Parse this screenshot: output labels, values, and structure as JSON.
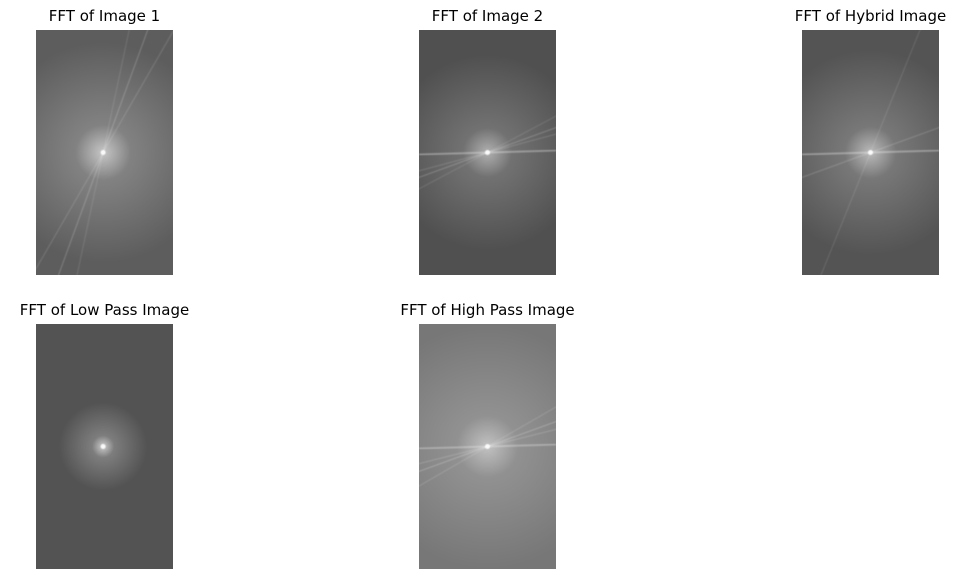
{
  "panels": [
    {
      "title": "FFT of Image 1",
      "background": "#5d5d5d",
      "center": [
        0.49,
        0.5
      ],
      "glow": 0.65,
      "glow_radius": 0.45,
      "cross": 0.55,
      "hline_tilt": 0,
      "streaks": [
        {
          "angle": 70,
          "strength": 0.35
        },
        {
          "angle": 60,
          "strength": 0.25
        },
        {
          "angle": 78,
          "strength": 0.2
        }
      ]
    },
    {
      "title": "FFT of Image 2",
      "background": "#505050",
      "center": [
        0.5,
        0.5
      ],
      "glow": 0.55,
      "glow_radius": 0.4,
      "cross": 0.5,
      "hline_tilt": -1,
      "streaks": [
        {
          "angle": 20,
          "strength": 0.35
        },
        {
          "angle": 15,
          "strength": 0.25
        },
        {
          "angle": 28,
          "strength": 0.2
        }
      ]
    },
    {
      "title": "FFT of Hybrid Image",
      "background": "#545454",
      "center": [
        0.5,
        0.5
      ],
      "glow": 0.6,
      "glow_radius": 0.42,
      "cross": 0.5,
      "hline_tilt": -1,
      "streaks": [
        {
          "angle": 20,
          "strength": 0.3
        },
        {
          "angle": 68,
          "strength": 0.2
        }
      ]
    },
    {
      "title": "FFT of Low Pass Image",
      "background": "#535353",
      "center": [
        0.49,
        0.5
      ],
      "glow": 0.7,
      "glow_radius": 0.18,
      "cross": 0.6,
      "hline_tilt": 0,
      "streaks": []
    },
    {
      "title": "FFT of High Pass Image",
      "background": "#777777",
      "center": [
        0.5,
        0.5
      ],
      "glow": 0.55,
      "glow_radius": 0.5,
      "cross": 0.45,
      "hline_tilt": -1,
      "streaks": [
        {
          "angle": 20,
          "strength": 0.4
        },
        {
          "angle": 14,
          "strength": 0.3
        },
        {
          "angle": 30,
          "strength": 0.25
        }
      ]
    }
  ]
}
